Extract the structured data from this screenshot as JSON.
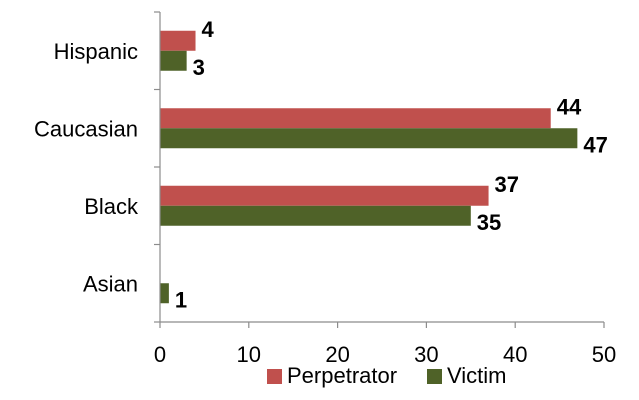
{
  "chart_data": {
    "type": "bar",
    "orientation": "horizontal",
    "categories": [
      "Hispanic",
      "Caucasian",
      "Black",
      "Asian"
    ],
    "series": [
      {
        "name": "Perpetrator",
        "color": "#c0504d",
        "values": [
          4,
          44,
          37,
          null
        ],
        "labels": [
          "4",
          "44",
          "37",
          ""
        ]
      },
      {
        "name": "Victim",
        "color": "#4f6228",
        "values": [
          3,
          47,
          35,
          1
        ],
        "labels": [
          "3",
          "47",
          "35",
          "1"
        ]
      }
    ],
    "xlim": [
      0,
      50
    ],
    "x_ticks": [
      0,
      10,
      20,
      30,
      40,
      50
    ],
    "x_tick_labels": [
      "0",
      "10",
      "20",
      "30",
      "40",
      "50"
    ],
    "title": "",
    "xlabel": "",
    "ylabel": "",
    "grid": false,
    "legend_position": "bottom"
  }
}
